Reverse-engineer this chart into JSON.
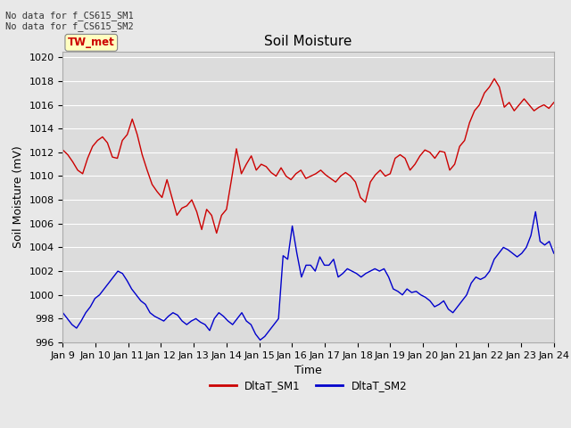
{
  "title": "Soil Moisture",
  "xlabel": "Time",
  "ylabel": "Soil Moisture (mV)",
  "ylim": [
    996,
    1020.5
  ],
  "yticks": [
    996,
    998,
    1000,
    1002,
    1004,
    1006,
    1008,
    1010,
    1012,
    1014,
    1016,
    1018,
    1020
  ],
  "xtick_labels": [
    "Jan 9",
    "Jan 10",
    "Jan 11",
    "Jan 12",
    "Jan 13",
    "Jan 14",
    "Jan 15",
    "Jan 16",
    "Jan 17",
    "Jan 18",
    "Jan 19",
    "Jan 20",
    "Jan 21",
    "Jan 22",
    "Jan 23",
    "Jan 24"
  ],
  "no_data_text1": "No data for f_CS615_SM1",
  "no_data_text2": "No data for f_CS615_SM2",
  "legend_label1": "DltaT_SM1",
  "legend_label2": "DltaT_SM2",
  "box_label": "TW_met",
  "sm1_color": "#cc0000",
  "sm2_color": "#0000cc",
  "bg_color": "#e8e8e8",
  "plot_bg_color": "#dcdcdc",
  "grid_color": "#ffffff",
  "title_fontsize": 11,
  "axis_fontsize": 9,
  "tick_fontsize": 8,
  "sm1_values": [
    1012.2,
    1011.8,
    1011.2,
    1010.5,
    1010.2,
    1011.5,
    1012.5,
    1013.0,
    1013.3,
    1012.8,
    1011.6,
    1011.5,
    1013.0,
    1013.5,
    1014.8,
    1013.5,
    1011.8,
    1010.5,
    1009.3,
    1008.7,
    1008.2,
    1009.7,
    1008.2,
    1006.7,
    1007.3,
    1007.5,
    1008.0,
    1007.0,
    1005.5,
    1007.2,
    1006.7,
    1005.2,
    1006.7,
    1007.2,
    1009.7,
    1012.3,
    1010.2,
    1011.0,
    1011.7,
    1010.5,
    1011.0,
    1010.8,
    1010.3,
    1010.0,
    1010.7,
    1010.0,
    1009.7,
    1010.2,
    1010.5,
    1009.8,
    1010.0,
    1010.2,
    1010.5,
    1010.1,
    1009.8,
    1009.5,
    1010.0,
    1010.3,
    1010.0,
    1009.5,
    1008.2,
    1007.8,
    1009.5,
    1010.1,
    1010.5,
    1010.0,
    1010.2,
    1011.5,
    1011.8,
    1011.5,
    1010.5,
    1011.0,
    1011.7,
    1012.2,
    1012.0,
    1011.5,
    1012.1,
    1012.0,
    1010.5,
    1011.0,
    1012.5,
    1013.0,
    1014.5,
    1015.5,
    1016.0,
    1017.0,
    1017.5,
    1018.2,
    1017.5,
    1015.8,
    1016.2,
    1015.5,
    1016.0,
    1016.5,
    1016.0,
    1015.5,
    1015.8,
    1016.0,
    1015.7,
    1016.2
  ],
  "sm2_values": [
    998.5,
    998.0,
    997.5,
    997.2,
    997.8,
    998.5,
    999.0,
    999.7,
    1000.0,
    1000.5,
    1001.0,
    1001.5,
    1002.0,
    1001.8,
    1001.2,
    1000.5,
    1000.0,
    999.5,
    999.2,
    998.5,
    998.2,
    998.0,
    997.8,
    998.2,
    998.5,
    998.3,
    997.8,
    997.5,
    997.8,
    998.0,
    997.7,
    997.5,
    997.0,
    998.0,
    998.5,
    998.2,
    997.8,
    997.5,
    998.0,
    998.5,
    997.8,
    997.5,
    996.7,
    996.2,
    996.5,
    997.0,
    997.5,
    998.0,
    1003.3,
    1003.0,
    1005.8,
    1003.5,
    1001.5,
    1002.5,
    1002.5,
    1002.0,
    1003.2,
    1002.5,
    1002.5,
    1003.0,
    1001.5,
    1001.8,
    1002.2,
    1002.0,
    1001.8,
    1001.5,
    1001.8,
    1002.0,
    1002.2,
    1002.0,
    1002.2,
    1001.5,
    1000.5,
    1000.3,
    1000.0,
    1000.5,
    1000.2,
    1000.3,
    1000.0,
    999.8,
    999.5,
    999.0,
    999.2,
    999.5,
    998.8,
    998.5,
    999.0,
    999.5,
    1000.0,
    1001.0,
    1001.5,
    1001.3,
    1001.5,
    1002.0,
    1003.0,
    1003.5,
    1004.0,
    1003.8,
    1003.5,
    1003.2,
    1003.5,
    1004.0,
    1005.0,
    1007.0,
    1004.5,
    1004.2,
    1004.5,
    1003.5
  ]
}
